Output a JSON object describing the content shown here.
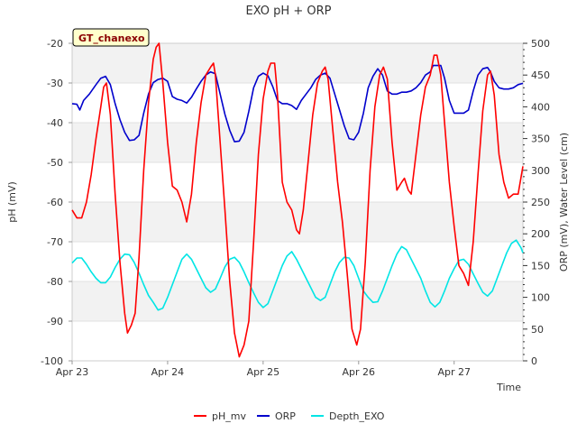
{
  "chart_data": {
    "type": "line",
    "title": "EXO pH + ORP",
    "station_badge": "GT_chanexo",
    "xlabel": "Time",
    "ylabel_left": "pH (mV)",
    "ylabel_right": "ORP (mV), Water Level (cm)",
    "x_range": [
      "Apr 23",
      "Apr 27 10:00"
    ],
    "x_ticks": [
      "Apr 23",
      "Apr 24",
      "Apr 25",
      "Apr 26",
      "Apr 27"
    ],
    "ylim_left": [
      -100,
      -20
    ],
    "yticks_left": [
      -100,
      -90,
      -80,
      -70,
      -60,
      -50,
      -40,
      -30,
      -20
    ],
    "ylim_right": [
      0,
      500
    ],
    "yticks_right": [
      0,
      50,
      100,
      150,
      200,
      250,
      300,
      350,
      400,
      450,
      500
    ],
    "grid": "horizontal bands",
    "legend_position": "bottom",
    "x_unit": "day offset from Apr 23",
    "series": [
      {
        "name": "pH_mv",
        "axis": "left",
        "color": "#ff0000",
        "points": [
          [
            0,
            -62
          ],
          [
            0.05,
            -64
          ],
          [
            0.1,
            -64
          ],
          [
            0.15,
            -60
          ],
          [
            0.2,
            -53
          ],
          [
            0.25,
            -44
          ],
          [
            0.3,
            -36
          ],
          [
            0.33,
            -31
          ],
          [
            0.36,
            -30
          ],
          [
            0.4,
            -38
          ],
          [
            0.45,
            -58
          ],
          [
            0.5,
            -75
          ],
          [
            0.55,
            -88
          ],
          [
            0.58,
            -93
          ],
          [
            0.62,
            -91
          ],
          [
            0.66,
            -88
          ],
          [
            0.7,
            -74
          ],
          [
            0.75,
            -52
          ],
          [
            0.8,
            -35
          ],
          [
            0.85,
            -24
          ],
          [
            0.88,
            -21
          ],
          [
            0.91,
            -20
          ],
          [
            0.95,
            -30
          ],
          [
            1.0,
            -45
          ],
          [
            1.05,
            -56
          ],
          [
            1.1,
            -57
          ],
          [
            1.15,
            -60
          ],
          [
            1.2,
            -65
          ],
          [
            1.25,
            -58
          ],
          [
            1.3,
            -45
          ],
          [
            1.35,
            -35
          ],
          [
            1.4,
            -28
          ],
          [
            1.45,
            -26
          ],
          [
            1.48,
            -25
          ],
          [
            1.5,
            -28
          ],
          [
            1.55,
            -45
          ],
          [
            1.6,
            -62
          ],
          [
            1.65,
            -80
          ],
          [
            1.7,
            -93
          ],
          [
            1.75,
            -99
          ],
          [
            1.8,
            -96
          ],
          [
            1.85,
            -90
          ],
          [
            1.9,
            -70
          ],
          [
            1.95,
            -48
          ],
          [
            2.0,
            -34
          ],
          [
            2.05,
            -27
          ],
          [
            2.08,
            -25
          ],
          [
            2.12,
            -25
          ],
          [
            2.15,
            -33
          ],
          [
            2.2,
            -55
          ],
          [
            2.25,
            -60
          ],
          [
            2.3,
            -62
          ],
          [
            2.35,
            -67
          ],
          [
            2.38,
            -68
          ],
          [
            2.42,
            -62
          ],
          [
            2.47,
            -50
          ],
          [
            2.52,
            -38
          ],
          [
            2.57,
            -30
          ],
          [
            2.62,
            -27
          ],
          [
            2.65,
            -26
          ],
          [
            2.68,
            -29
          ],
          [
            2.73,
            -42
          ],
          [
            2.78,
            -55
          ],
          [
            2.83,
            -65
          ],
          [
            2.88,
            -78
          ],
          [
            2.93,
            -92
          ],
          [
            2.98,
            -96
          ],
          [
            3.02,
            -92
          ],
          [
            3.07,
            -75
          ],
          [
            3.12,
            -52
          ],
          [
            3.17,
            -36
          ],
          [
            3.22,
            -28
          ],
          [
            3.26,
            -26
          ],
          [
            3.3,
            -29
          ],
          [
            3.35,
            -45
          ],
          [
            3.4,
            -57
          ],
          [
            3.45,
            -55
          ],
          [
            3.48,
            -54
          ],
          [
            3.52,
            -57
          ],
          [
            3.55,
            -58
          ],
          [
            3.6,
            -48
          ],
          [
            3.65,
            -38
          ],
          [
            3.7,
            -31
          ],
          [
            3.75,
            -28
          ],
          [
            3.79,
            -23
          ],
          [
            3.82,
            -23
          ],
          [
            3.86,
            -28
          ],
          [
            3.9,
            -40
          ],
          [
            3.95,
            -55
          ],
          [
            4.0,
            -66
          ],
          [
            4.05,
            -76
          ],
          [
            4.1,
            -78
          ],
          [
            4.15,
            -81
          ],
          [
            4.2,
            -70
          ],
          [
            4.25,
            -53
          ],
          [
            4.3,
            -37
          ],
          [
            4.35,
            -28
          ],
          [
            4.38,
            -27
          ],
          [
            4.42,
            -33
          ],
          [
            4.47,
            -48
          ],
          [
            4.52,
            -55
          ],
          [
            4.57,
            -59
          ],
          [
            4.62,
            -58
          ],
          [
            4.67,
            -58
          ],
          [
            4.72,
            -51
          ]
        ]
      },
      {
        "name": "ORP",
        "axis": "right",
        "color": "#0000cc",
        "points": [
          [
            0,
            405
          ],
          [
            0.05,
            404
          ],
          [
            0.08,
            395
          ],
          [
            0.12,
            410
          ],
          [
            0.18,
            420
          ],
          [
            0.25,
            435
          ],
          [
            0.3,
            445
          ],
          [
            0.35,
            448
          ],
          [
            0.4,
            435
          ],
          [
            0.45,
            405
          ],
          [
            0.5,
            380
          ],
          [
            0.55,
            360
          ],
          [
            0.6,
            347
          ],
          [
            0.65,
            348
          ],
          [
            0.7,
            355
          ],
          [
            0.75,
            390
          ],
          [
            0.8,
            420
          ],
          [
            0.85,
            438
          ],
          [
            0.9,
            443
          ],
          [
            0.95,
            445
          ],
          [
            1.0,
            440
          ],
          [
            1.05,
            416
          ],
          [
            1.1,
            412
          ],
          [
            1.15,
            410
          ],
          [
            1.2,
            406
          ],
          [
            1.25,
            415
          ],
          [
            1.3,
            428
          ],
          [
            1.35,
            440
          ],
          [
            1.4,
            450
          ],
          [
            1.45,
            455
          ],
          [
            1.5,
            452
          ],
          [
            1.55,
            420
          ],
          [
            1.6,
            388
          ],
          [
            1.65,
            363
          ],
          [
            1.7,
            345
          ],
          [
            1.75,
            346
          ],
          [
            1.8,
            360
          ],
          [
            1.85,
            393
          ],
          [
            1.9,
            430
          ],
          [
            1.95,
            448
          ],
          [
            2.0,
            453
          ],
          [
            2.05,
            449
          ],
          [
            2.1,
            432
          ],
          [
            2.15,
            410
          ],
          [
            2.2,
            405
          ],
          [
            2.25,
            405
          ],
          [
            2.3,
            402
          ],
          [
            2.35,
            396
          ],
          [
            2.4,
            410
          ],
          [
            2.45,
            420
          ],
          [
            2.5,
            430
          ],
          [
            2.55,
            443
          ],
          [
            2.6,
            450
          ],
          [
            2.65,
            453
          ],
          [
            2.7,
            445
          ],
          [
            2.75,
            420
          ],
          [
            2.8,
            395
          ],
          [
            2.85,
            370
          ],
          [
            2.9,
            350
          ],
          [
            2.95,
            348
          ],
          [
            3.0,
            360
          ],
          [
            3.05,
            390
          ],
          [
            3.1,
            430
          ],
          [
            3.15,
            448
          ],
          [
            3.2,
            460
          ],
          [
            3.25,
            450
          ],
          [
            3.3,
            425
          ],
          [
            3.35,
            420
          ],
          [
            3.4,
            420
          ],
          [
            3.45,
            423
          ],
          [
            3.5,
            423
          ],
          [
            3.55,
            425
          ],
          [
            3.6,
            430
          ],
          [
            3.65,
            438
          ],
          [
            3.7,
            450
          ],
          [
            3.75,
            455
          ],
          [
            3.78,
            465
          ],
          [
            3.82,
            465
          ],
          [
            3.86,
            465
          ],
          [
            3.9,
            445
          ],
          [
            3.95,
            410
          ],
          [
            4.0,
            390
          ],
          [
            4.05,
            390
          ],
          [
            4.1,
            390
          ],
          [
            4.15,
            395
          ],
          [
            4.2,
            425
          ],
          [
            4.25,
            450
          ],
          [
            4.3,
            460
          ],
          [
            4.35,
            462
          ],
          [
            4.38,
            455
          ],
          [
            4.42,
            440
          ],
          [
            4.47,
            430
          ],
          [
            4.52,
            428
          ],
          [
            4.57,
            428
          ],
          [
            4.62,
            430
          ],
          [
            4.67,
            435
          ],
          [
            4.72,
            437
          ]
        ]
      },
      {
        "name": "Depth_EXO",
        "axis": "right",
        "color": "#00e5e5",
        "points": [
          [
            0,
            154
          ],
          [
            0.05,
            162
          ],
          [
            0.1,
            162
          ],
          [
            0.15,
            152
          ],
          [
            0.2,
            140
          ],
          [
            0.25,
            130
          ],
          [
            0.3,
            123
          ],
          [
            0.35,
            123
          ],
          [
            0.4,
            132
          ],
          [
            0.45,
            147
          ],
          [
            0.5,
            160
          ],
          [
            0.55,
            168
          ],
          [
            0.6,
            167
          ],
          [
            0.65,
            155
          ],
          [
            0.7,
            138
          ],
          [
            0.75,
            120
          ],
          [
            0.8,
            103
          ],
          [
            0.85,
            92
          ],
          [
            0.9,
            80
          ],
          [
            0.95,
            83
          ],
          [
            1.0,
            100
          ],
          [
            1.05,
            120
          ],
          [
            1.1,
            140
          ],
          [
            1.15,
            160
          ],
          [
            1.2,
            168
          ],
          [
            1.25,
            160
          ],
          [
            1.3,
            145
          ],
          [
            1.35,
            130
          ],
          [
            1.4,
            115
          ],
          [
            1.45,
            108
          ],
          [
            1.5,
            113
          ],
          [
            1.55,
            130
          ],
          [
            1.6,
            148
          ],
          [
            1.65,
            160
          ],
          [
            1.7,
            163
          ],
          [
            1.75,
            155
          ],
          [
            1.8,
            140
          ],
          [
            1.85,
            123
          ],
          [
            1.9,
            107
          ],
          [
            1.95,
            92
          ],
          [
            2.0,
            84
          ],
          [
            2.05,
            90
          ],
          [
            2.1,
            110
          ],
          [
            2.15,
            130
          ],
          [
            2.2,
            150
          ],
          [
            2.25,
            165
          ],
          [
            2.3,
            172
          ],
          [
            2.35,
            160
          ],
          [
            2.4,
            145
          ],
          [
            2.45,
            130
          ],
          [
            2.5,
            115
          ],
          [
            2.55,
            100
          ],
          [
            2.6,
            95
          ],
          [
            2.65,
            100
          ],
          [
            2.7,
            120
          ],
          [
            2.75,
            140
          ],
          [
            2.8,
            155
          ],
          [
            2.85,
            163
          ],
          [
            2.9,
            162
          ],
          [
            2.95,
            150
          ],
          [
            3.0,
            130
          ],
          [
            3.05,
            110
          ],
          [
            3.1,
            100
          ],
          [
            3.15,
            92
          ],
          [
            3.2,
            93
          ],
          [
            3.25,
            110
          ],
          [
            3.3,
            130
          ],
          [
            3.35,
            150
          ],
          [
            3.4,
            168
          ],
          [
            3.45,
            180
          ],
          [
            3.5,
            175
          ],
          [
            3.55,
            160
          ],
          [
            3.6,
            145
          ],
          [
            3.65,
            130
          ],
          [
            3.7,
            110
          ],
          [
            3.75,
            92
          ],
          [
            3.8,
            85
          ],
          [
            3.85,
            92
          ],
          [
            3.9,
            110
          ],
          [
            3.95,
            130
          ],
          [
            4.0,
            145
          ],
          [
            4.05,
            158
          ],
          [
            4.1,
            160
          ],
          [
            4.15,
            152
          ],
          [
            4.2,
            137
          ],
          [
            4.25,
            122
          ],
          [
            4.3,
            108
          ],
          [
            4.35,
            102
          ],
          [
            4.4,
            110
          ],
          [
            4.45,
            130
          ],
          [
            4.5,
            150
          ],
          [
            4.55,
            170
          ],
          [
            4.6,
            185
          ],
          [
            4.65,
            190
          ],
          [
            4.7,
            178
          ],
          [
            4.72,
            170
          ]
        ]
      }
    ]
  }
}
